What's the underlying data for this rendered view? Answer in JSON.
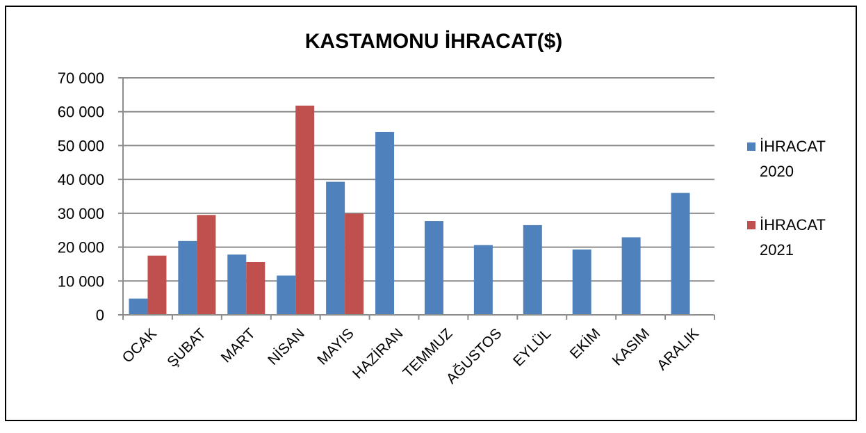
{
  "chart_data": {
    "type": "bar",
    "title": "KASTAMONU İHRACAT($)",
    "xlabel": "",
    "ylabel": "",
    "categories": [
      "OCAK",
      "ŞUBAT",
      "MART",
      "NİSAN",
      "MAYIS",
      "HAZİRAN",
      "TEMMUZ",
      "AĞUSTOS",
      "EYLÜL",
      "EKİM",
      "KASIM",
      "ARALIK"
    ],
    "series": [
      {
        "name_line1": "İHRACAT",
        "name_line2": "2020",
        "color": "#4F81BD",
        "values": [
          4800,
          21800,
          17800,
          11600,
          39300,
          54000,
          27700,
          20600,
          26500,
          19300,
          22900,
          36000
        ]
      },
      {
        "name_line1": "İHRACAT",
        "name_line2": "2021",
        "color": "#C0504D",
        "values": [
          17500,
          29500,
          15600,
          61800,
          29900,
          null,
          null,
          null,
          null,
          null,
          null,
          null
        ]
      }
    ],
    "ylim": [
      0,
      70000
    ],
    "yticks": [
      0,
      10000,
      20000,
      30000,
      40000,
      50000,
      60000,
      70000
    ],
    "ytick_labels": [
      "0",
      "10 000",
      "20 000",
      "30 000",
      "40 000",
      "50 000",
      "60 000",
      "70 000"
    ],
    "grid": true,
    "legend_position": "right"
  }
}
